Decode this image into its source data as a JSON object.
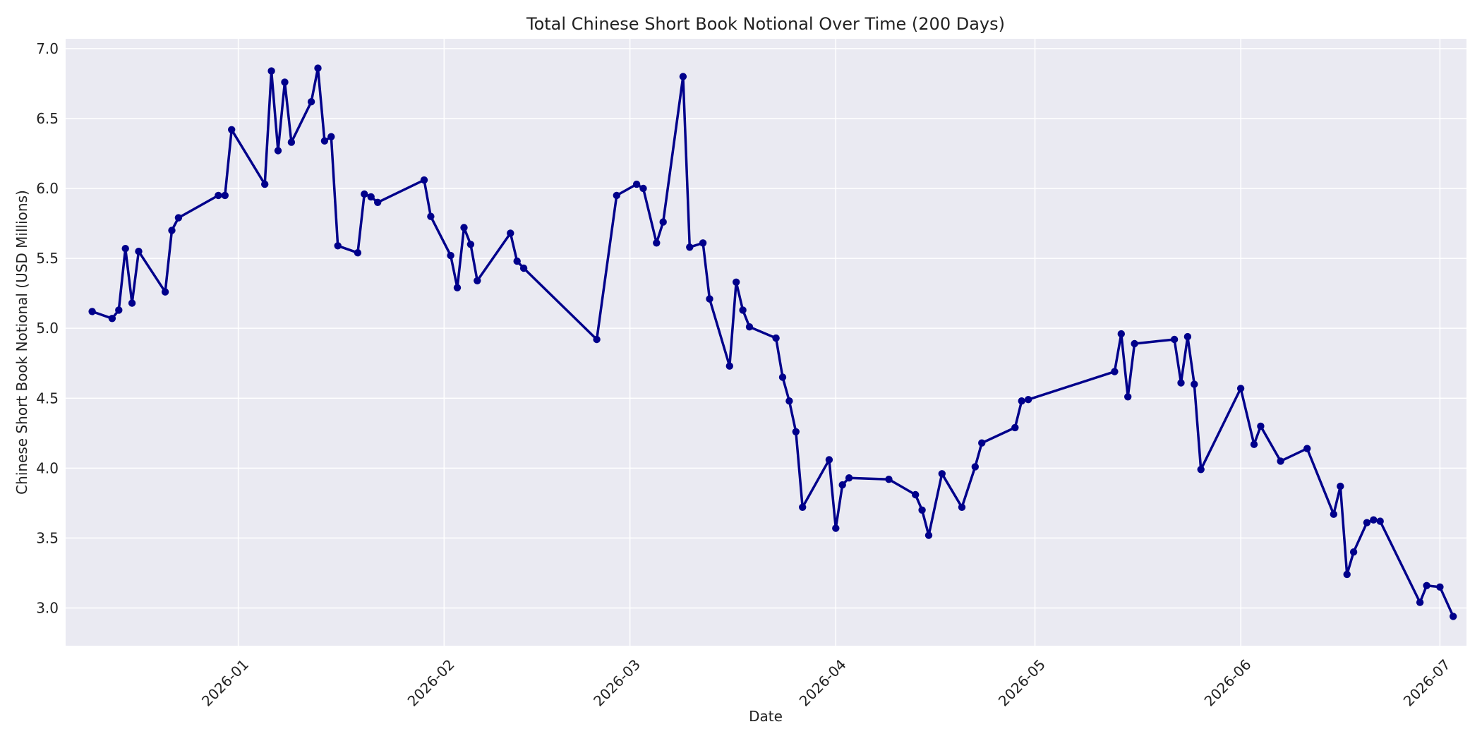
{
  "chart_data": {
    "type": "line",
    "title": "Total Chinese Short Book Notional Over Time (200 Days)",
    "xlabel": "Date",
    "ylabel": "Chinese Short Book Notional (USD Millions)",
    "x_axis": {
      "kind": "date",
      "range": [
        "2025-12-06",
        "2026-07-05"
      ],
      "ticks": [
        "2026-01-01",
        "2026-02-01",
        "2026-03-01",
        "2026-04-01",
        "2026-05-01",
        "2026-06-01",
        "2026-07-01"
      ],
      "tick_labels": [
        "2026-01",
        "2026-02",
        "2026-03",
        "2026-04",
        "2026-05",
        "2026-06",
        "2026-07"
      ],
      "tick_rotation_deg": 45
    },
    "y_axis": {
      "range": [
        2.73,
        7.07
      ],
      "ticks": [
        3.0,
        3.5,
        4.0,
        4.5,
        5.0,
        5.5,
        6.0,
        6.5,
        7.0
      ],
      "tick_labels": [
        "3.0",
        "3.5",
        "4.0",
        "4.5",
        "5.0",
        "5.5",
        "6.0",
        "6.5",
        "7.0"
      ]
    },
    "grid": true,
    "colors": {
      "line": "#00008b",
      "plot_background": "#eaeaf2",
      "grid": "#ffffff"
    },
    "series": [
      {
        "marker": "circle",
        "x": [
          "2025-12-10",
          "2025-12-13",
          "2025-12-14",
          "2025-12-15",
          "2025-12-16",
          "2025-12-17",
          "2025-12-21",
          "2025-12-22",
          "2025-12-23",
          "2025-12-29",
          "2025-12-30",
          "2025-12-31",
          "2026-01-05",
          "2026-01-06",
          "2026-01-07",
          "2026-01-08",
          "2026-01-09",
          "2026-01-12",
          "2026-01-13",
          "2026-01-14",
          "2026-01-15",
          "2026-01-16",
          "2026-01-19",
          "2026-01-20",
          "2026-01-21",
          "2026-01-22",
          "2026-01-29",
          "2026-01-30",
          "2026-02-02",
          "2026-02-03",
          "2026-02-04",
          "2026-02-05",
          "2026-02-06",
          "2026-02-11",
          "2026-02-12",
          "2026-02-13",
          "2026-02-24",
          "2026-02-27",
          "2026-03-02",
          "2026-03-03",
          "2026-03-05",
          "2026-03-06",
          "2026-03-09",
          "2026-03-10",
          "2026-03-12",
          "2026-03-13",
          "2026-03-16",
          "2026-03-17",
          "2026-03-18",
          "2026-03-19",
          "2026-03-23",
          "2026-03-24",
          "2026-03-25",
          "2026-03-26",
          "2026-03-27",
          "2026-03-31",
          "2026-04-01",
          "2026-04-02",
          "2026-04-03",
          "2026-04-09",
          "2026-04-13",
          "2026-04-14",
          "2026-04-15",
          "2026-04-17",
          "2026-04-20",
          "2026-04-22",
          "2026-04-23",
          "2026-04-28",
          "2026-04-29",
          "2026-04-30",
          "2026-05-13",
          "2026-05-14",
          "2026-05-15",
          "2026-05-16",
          "2026-05-22",
          "2026-05-23",
          "2026-05-24",
          "2026-05-25",
          "2026-05-26",
          "2026-06-01",
          "2026-06-03",
          "2026-06-04",
          "2026-06-07",
          "2026-06-11",
          "2026-06-15",
          "2026-06-16",
          "2026-06-17",
          "2026-06-18",
          "2026-06-20",
          "2026-06-21",
          "2026-06-22",
          "2026-06-28",
          "2026-06-29",
          "2026-07-01",
          "2026-07-03"
        ],
        "y": [
          5.12,
          5.07,
          5.13,
          5.57,
          5.18,
          5.55,
          5.26,
          5.7,
          5.79,
          5.95,
          5.95,
          6.42,
          6.03,
          6.84,
          6.27,
          6.76,
          6.33,
          6.62,
          6.86,
          6.34,
          6.37,
          5.59,
          5.54,
          5.96,
          5.94,
          5.9,
          6.06,
          5.8,
          5.52,
          5.29,
          5.72,
          5.6,
          5.34,
          5.68,
          5.48,
          5.43,
          4.92,
          5.95,
          6.03,
          6.0,
          5.61,
          5.76,
          6.8,
          5.58,
          5.61,
          5.21,
          4.73,
          5.33,
          5.13,
          5.01,
          4.93,
          4.65,
          4.48,
          4.26,
          3.72,
          4.06,
          3.57,
          3.88,
          3.93,
          3.92,
          3.81,
          3.7,
          3.52,
          3.96,
          3.72,
          4.01,
          4.18,
          4.29,
          4.48,
          4.49,
          4.69,
          4.96,
          4.51,
          4.89,
          4.92,
          4.61,
          4.94,
          4.6,
          3.99,
          4.57,
          4.17,
          4.3,
          4.05,
          4.14,
          3.67,
          3.87,
          3.24,
          3.4,
          3.61,
          3.63,
          3.62,
          3.04,
          3.16,
          3.15,
          2.94
        ]
      }
    ]
  }
}
